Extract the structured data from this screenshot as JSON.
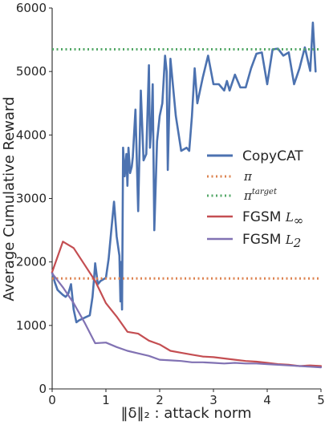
{
  "chart_data": {
    "type": "line",
    "xlabel": "‖δ‖₂ : attack norm",
    "ylabel": "Average Cumulative Reward",
    "xlim": [
      0,
      5
    ],
    "ylim": [
      0,
      6000
    ],
    "x_ticks": [
      "0",
      "1",
      "2",
      "3",
      "4",
      "5"
    ],
    "y_ticks": [
      "0",
      "1000",
      "2000",
      "3000",
      "4000",
      "5000",
      "6000"
    ],
    "x_tick_values": [
      0,
      1,
      2,
      3,
      4,
      5
    ],
    "y_tick_values": [
      0,
      1000,
      2000,
      3000,
      4000,
      5000,
      6000
    ],
    "grid": false,
    "legend_position": "center-right",
    "series": [
      {
        "name": "CopyCAT",
        "color": "#4c72b0",
        "style": "solid",
        "x": [
          0.0,
          0.05,
          0.1,
          0.15,
          0.2,
          0.25,
          0.3,
          0.35,
          0.4,
          0.45,
          0.5,
          0.6,
          0.7,
          0.75,
          0.78,
          0.8,
          0.85,
          0.9,
          1.0,
          1.05,
          1.1,
          1.15,
          1.2,
          1.25,
          1.27,
          1.28,
          1.3,
          1.32,
          1.35,
          1.38,
          1.4,
          1.42,
          1.45,
          1.48,
          1.5,
          1.55,
          1.6,
          1.65,
          1.7,
          1.75,
          1.8,
          1.82,
          1.85,
          1.87,
          1.9,
          1.95,
          2.0,
          2.05,
          2.1,
          2.13,
          2.15,
          2.2,
          2.3,
          2.4,
          2.5,
          2.55,
          2.6,
          2.65,
          2.7,
          2.8,
          2.9,
          3.0,
          3.1,
          3.2,
          3.25,
          3.3,
          3.4,
          3.5,
          3.6,
          3.7,
          3.8,
          3.9,
          4.0,
          4.1,
          4.2,
          4.3,
          4.4,
          4.5,
          4.6,
          4.7,
          4.8,
          4.85,
          4.9
        ],
        "y": [
          1830,
          1680,
          1560,
          1520,
          1480,
          1450,
          1500,
          1650,
          1250,
          1050,
          1080,
          1120,
          1160,
          1450,
          1750,
          1980,
          1650,
          1700,
          1750,
          2050,
          2500,
          2950,
          2400,
          2100,
          1380,
          2000,
          1250,
          3800,
          3350,
          3700,
          3200,
          3800,
          3400,
          3500,
          3650,
          4400,
          2800,
          4700,
          3600,
          3700,
          5100,
          3800,
          4200,
          4800,
          2500,
          3900,
          4300,
          4500,
          5250,
          5000,
          3450,
          5200,
          4300,
          3750,
          3800,
          3750,
          4300,
          5050,
          4500,
          4900,
          5250,
          4800,
          4800,
          4700,
          4850,
          4700,
          4950,
          4750,
          4750,
          5050,
          5280,
          5300,
          4800,
          5350,
          5360,
          5250,
          5300,
          4800,
          5050,
          5380,
          5010,
          5770,
          5000
        ],
        "data_name": "series-copycat-line"
      },
      {
        "name": "π",
        "color": "#dd8452",
        "style": "dotted",
        "x": [
          0,
          5
        ],
        "y": [
          1740,
          1740
        ],
        "data_name": "series-pi-line"
      },
      {
        "name": "π^target",
        "color": "#55a868",
        "style": "dotted",
        "x": [
          0,
          5
        ],
        "y": [
          5350,
          5350
        ],
        "data_name": "series-pi-target-line"
      },
      {
        "name": "FGSM L∞",
        "color": "#c44e52",
        "style": "solid",
        "x": [
          0.0,
          0.2,
          0.4,
          0.6,
          0.8,
          1.0,
          1.2,
          1.4,
          1.6,
          1.8,
          2.0,
          2.2,
          2.4,
          2.6,
          2.8,
          3.0,
          3.2,
          3.4,
          3.6,
          3.8,
          4.0,
          4.2,
          4.4,
          4.6,
          4.8,
          5.0
        ],
        "y": [
          1840,
          2320,
          2220,
          1960,
          1700,
          1350,
          1140,
          900,
          870,
          760,
          700,
          600,
          570,
          540,
          510,
          500,
          480,
          460,
          440,
          430,
          410,
          390,
          380,
          360,
          370,
          360
        ],
        "data_name": "series-fgsm-linf-line"
      },
      {
        "name": "FGSM L2",
        "color": "#8172b3",
        "style": "solid",
        "x": [
          0.0,
          0.2,
          0.4,
          0.6,
          0.8,
          1.0,
          1.2,
          1.4,
          1.6,
          1.8,
          2.0,
          2.2,
          2.4,
          2.6,
          2.8,
          3.0,
          3.2,
          3.4,
          3.6,
          3.8,
          4.0,
          4.2,
          4.4,
          4.6,
          4.8,
          5.0
        ],
        "y": [
          1820,
          1600,
          1350,
          1050,
          720,
          730,
          660,
          600,
          560,
          520,
          460,
          450,
          440,
          420,
          420,
          410,
          400,
          410,
          400,
          400,
          390,
          380,
          370,
          360,
          350,
          340
        ],
        "data_name": "series-fgsm-l2-line"
      }
    ]
  }
}
